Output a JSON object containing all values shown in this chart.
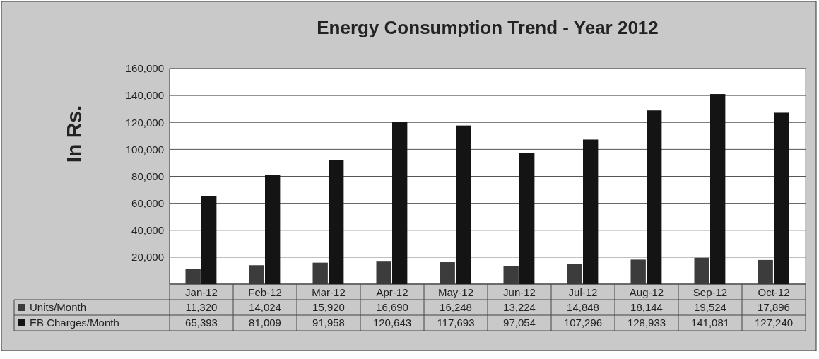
{
  "chart_data": {
    "type": "bar",
    "title": "Energy Consumption Trend - Year 2012",
    "ylabel": "In Rs.",
    "categories": [
      "Jan-12",
      "Feb-12",
      "Mar-12",
      "Apr-12",
      "May-12",
      "Jun-12",
      "Jul-12",
      "Aug-12",
      "Sep-12",
      "Oct-12"
    ],
    "series": [
      {
        "name": "Units/Month",
        "color": "#3c3c3c",
        "values": [
          11320,
          14024,
          15920,
          16690,
          16248,
          13224,
          14848,
          18144,
          19524,
          17896
        ],
        "value_labels": [
          "11,320",
          "14,024",
          "15,920",
          "16,690",
          "16,248",
          "13,224",
          "14,848",
          "18,144",
          "19,524",
          "17,896"
        ]
      },
      {
        "name": "EB Charges/Month",
        "color": "#141414",
        "values": [
          65393,
          81009,
          91958,
          120643,
          117693,
          97054,
          107296,
          128933,
          141081,
          127240
        ],
        "value_labels": [
          "65,393",
          "81,009",
          "91,958",
          "120,643",
          "117,693",
          "97,054",
          "107,296",
          "128,933",
          "141,081",
          "127,240"
        ]
      }
    ],
    "ylim": [
      0,
      160000
    ],
    "yticks": [
      {
        "value": 0,
        "label": null
      },
      {
        "value": 20000,
        "label": "20,000"
      },
      {
        "value": 40000,
        "label": "40,000"
      },
      {
        "value": 60000,
        "label": "60,000"
      },
      {
        "value": 80000,
        "label": "80,000"
      },
      {
        "value": 100000,
        "label": "100,000"
      },
      {
        "value": 120000,
        "label": "120,000"
      },
      {
        "value": 140000,
        "label": "140,000"
      },
      {
        "value": 160000,
        "label": "160,000"
      }
    ],
    "grid": "y",
    "legend": "bottom"
  }
}
